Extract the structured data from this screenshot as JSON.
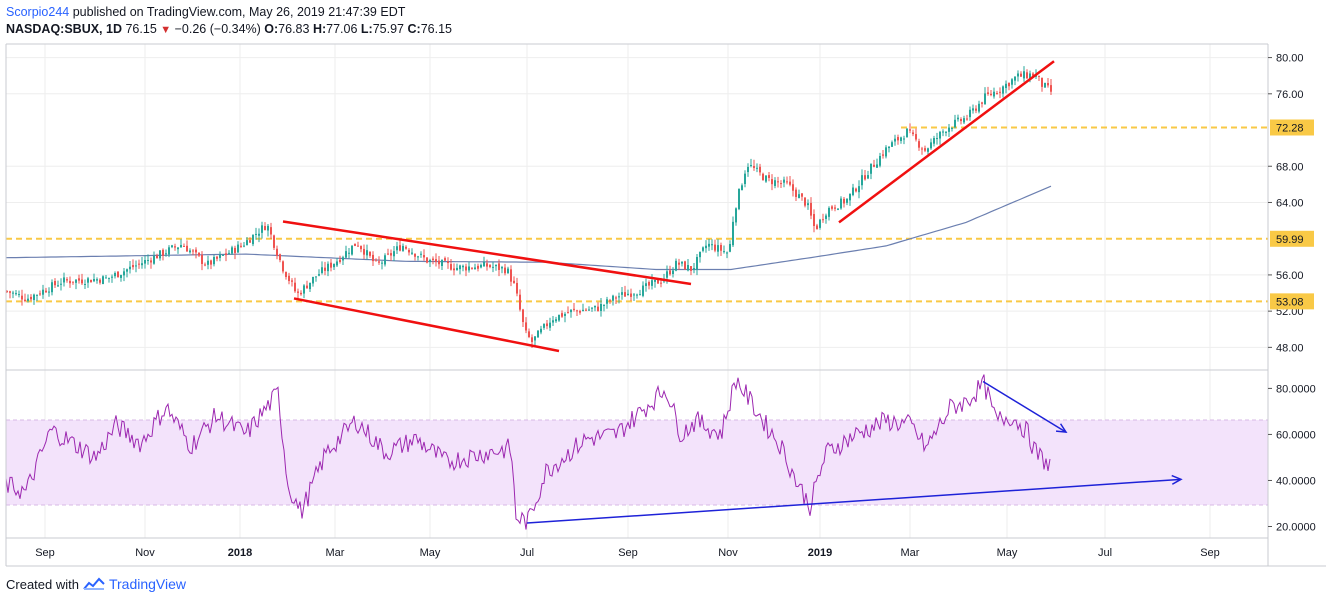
{
  "header": {
    "author": "Scorpio244",
    "published_text": "published on TradingView.com, May 26, 2019 21:47:39 EDT",
    "symbol": "NASDAQ:SBUX, 1D",
    "last": "76.15",
    "change": "−0.26 (−0.34%)",
    "o_label": "O:",
    "o_value": "76.83",
    "h_label": "H:",
    "h_value": "77.06",
    "l_label": "L:",
    "l_value": "75.97",
    "c_label": "C:",
    "c_value": "76.15"
  },
  "footer": {
    "created_with": "Created with",
    "brand": "TradingView"
  },
  "colors": {
    "up": "#26a69a",
    "down": "#ef5350",
    "trendline_red": "#f01010",
    "level_dash": "#f9c946",
    "ma_line": "#6b7fb0",
    "rsi_line": "#9c27b0",
    "rsi_band": "#f3e3fb",
    "rsi_arrow": "#1e22d8",
    "grid": "#eeeeee"
  },
  "chart_data": [
    {
      "type": "candlestick",
      "title": "NASDAQ:SBUX, 1D",
      "ylim": [
        45.5,
        81.5
      ],
      "y_ticks": [
        "80.00",
        "76.00",
        "68.00",
        "64.00",
        "56.00",
        "52.00",
        "48.00"
      ],
      "x_ticks": [
        "Sep",
        "Nov",
        "2018",
        "Mar",
        "May",
        "Jul",
        "Sep",
        "Nov",
        "2019",
        "Mar",
        "May",
        "Jul",
        "Sep"
      ],
      "price_path_anchors": [
        {
          "t": 0,
          "p": 54.2
        },
        {
          "t": 20,
          "p": 53.4
        },
        {
          "t": 55,
          "p": 55.3
        },
        {
          "t": 100,
          "p": 55.6
        },
        {
          "t": 140,
          "p": 57.6
        },
        {
          "t": 175,
          "p": 59.4
        },
        {
          "t": 200,
          "p": 57.1
        },
        {
          "t": 235,
          "p": 59.3
        },
        {
          "t": 260,
          "p": 61.6
        },
        {
          "t": 275,
          "p": 57.0
        },
        {
          "t": 290,
          "p": 53.8
        },
        {
          "t": 310,
          "p": 56.0
        },
        {
          "t": 330,
          "p": 57.6
        },
        {
          "t": 350,
          "p": 59.6
        },
        {
          "t": 370,
          "p": 57.0
        },
        {
          "t": 395,
          "p": 59.3
        },
        {
          "t": 420,
          "p": 57.6
        },
        {
          "t": 450,
          "p": 56.8
        },
        {
          "t": 480,
          "p": 57.0
        },
        {
          "t": 500,
          "p": 56.6
        },
        {
          "t": 508,
          "p": 54.6
        },
        {
          "t": 518,
          "p": 49.6
        },
        {
          "t": 525,
          "p": 48.6
        },
        {
          "t": 545,
          "p": 51.2
        },
        {
          "t": 565,
          "p": 52.0
        },
        {
          "t": 590,
          "p": 52.3
        },
        {
          "t": 610,
          "p": 53.6
        },
        {
          "t": 635,
          "p": 54.4
        },
        {
          "t": 655,
          "p": 55.5
        },
        {
          "t": 670,
          "p": 57.3
        },
        {
          "t": 685,
          "p": 56.6
        },
        {
          "t": 700,
          "p": 59.4
        },
        {
          "t": 722,
          "p": 58.4
        },
        {
          "t": 727,
          "p": 63.0
        },
        {
          "t": 740,
          "p": 68.3
        },
        {
          "t": 760,
          "p": 66.5
        },
        {
          "t": 780,
          "p": 66.0
        },
        {
          "t": 800,
          "p": 63.8
        },
        {
          "t": 808,
          "p": 61.0
        },
        {
          "t": 820,
          "p": 63.2
        },
        {
          "t": 840,
          "p": 64.3
        },
        {
          "t": 860,
          "p": 67.3
        },
        {
          "t": 880,
          "p": 70.0
        },
        {
          "t": 900,
          "p": 71.8
        },
        {
          "t": 918,
          "p": 69.8
        },
        {
          "t": 940,
          "p": 72.3
        },
        {
          "t": 960,
          "p": 73.4
        },
        {
          "t": 978,
          "p": 75.6
        },
        {
          "t": 995,
          "p": 76.7
        },
        {
          "t": 1010,
          "p": 77.9
        },
        {
          "t": 1028,
          "p": 78.2
        },
        {
          "t": 1035,
          "p": 77.0
        },
        {
          "t": 1045,
          "p": 76.15
        }
      ],
      "moving_average": [
        {
          "t": 0,
          "p": 57.9
        },
        {
          "t": 120,
          "p": 58.1
        },
        {
          "t": 240,
          "p": 58.3
        },
        {
          "t": 400,
          "p": 57.5
        },
        {
          "t": 540,
          "p": 57.4
        },
        {
          "t": 650,
          "p": 56.6
        },
        {
          "t": 725,
          "p": 56.6
        },
        {
          "t": 810,
          "p": 58.0
        },
        {
          "t": 880,
          "p": 59.2
        },
        {
          "t": 960,
          "p": 61.8
        },
        {
          "t": 1045,
          "p": 65.8
        }
      ],
      "horizontal_levels": [
        {
          "value": 72.28,
          "label": "72.28",
          "from_t": 895
        },
        {
          "value": 59.99,
          "label": "59.99",
          "from_t": 0
        },
        {
          "value": 53.08,
          "label": "53.08",
          "from_t": 0
        }
      ],
      "trendlines": [
        {
          "t1": 277,
          "p1": 61.9,
          "t2": 685,
          "p2": 55.0
        },
        {
          "t1": 288,
          "p1": 53.4,
          "t2": 553,
          "p2": 47.6
        },
        {
          "t1": 833,
          "p1": 61.8,
          "t2": 1048,
          "p2": 79.6
        }
      ]
    },
    {
      "type": "line",
      "title": "RSI",
      "ylim": [
        15,
        88
      ],
      "y_ticks": [
        "80.0000",
        "60.0000",
        "40.0000",
        "20.0000"
      ],
      "band": [
        30,
        70
      ],
      "rsi_anchors": [
        {
          "t": 0,
          "p": 38
        },
        {
          "t": 20,
          "p": 35
        },
        {
          "t": 45,
          "p": 62
        },
        {
          "t": 90,
          "p": 50
        },
        {
          "t": 110,
          "p": 64
        },
        {
          "t": 135,
          "p": 56
        },
        {
          "t": 160,
          "p": 72
        },
        {
          "t": 185,
          "p": 55
        },
        {
          "t": 210,
          "p": 68
        },
        {
          "t": 240,
          "p": 60
        },
        {
          "t": 272,
          "p": 78
        },
        {
          "t": 282,
          "p": 38
        },
        {
          "t": 295,
          "p": 26
        },
        {
          "t": 320,
          "p": 52
        },
        {
          "t": 350,
          "p": 66
        },
        {
          "t": 380,
          "p": 52
        },
        {
          "t": 410,
          "p": 58
        },
        {
          "t": 440,
          "p": 48
        },
        {
          "t": 480,
          "p": 52
        },
        {
          "t": 505,
          "p": 54
        },
        {
          "t": 510,
          "p": 24
        },
        {
          "t": 522,
          "p": 22
        },
        {
          "t": 540,
          "p": 44
        },
        {
          "t": 580,
          "p": 58
        },
        {
          "t": 610,
          "p": 60
        },
        {
          "t": 630,
          "p": 68
        },
        {
          "t": 660,
          "p": 80
        },
        {
          "t": 675,
          "p": 60
        },
        {
          "t": 690,
          "p": 66
        },
        {
          "t": 715,
          "p": 60
        },
        {
          "t": 730,
          "p": 84
        },
        {
          "t": 760,
          "p": 64
        },
        {
          "t": 775,
          "p": 55
        },
        {
          "t": 790,
          "p": 40
        },
        {
          "t": 804,
          "p": 29
        },
        {
          "t": 820,
          "p": 52
        },
        {
          "t": 850,
          "p": 60
        },
        {
          "t": 880,
          "p": 66
        },
        {
          "t": 905,
          "p": 64
        },
        {
          "t": 920,
          "p": 54
        },
        {
          "t": 945,
          "p": 72
        },
        {
          "t": 960,
          "p": 74
        },
        {
          "t": 978,
          "p": 82
        },
        {
          "t": 990,
          "p": 66
        },
        {
          "t": 1005,
          "p": 68
        },
        {
          "t": 1020,
          "p": 62
        },
        {
          "t": 1030,
          "p": 52
        },
        {
          "t": 1045,
          "p": 46
        }
      ],
      "arrows": [
        {
          "t1": 977,
          "p1": 83,
          "t2": 1060,
          "p2": 61
        },
        {
          "t1": 521,
          "p1": 21.5,
          "t2": 1175,
          "p2": 40.5
        }
      ]
    }
  ]
}
